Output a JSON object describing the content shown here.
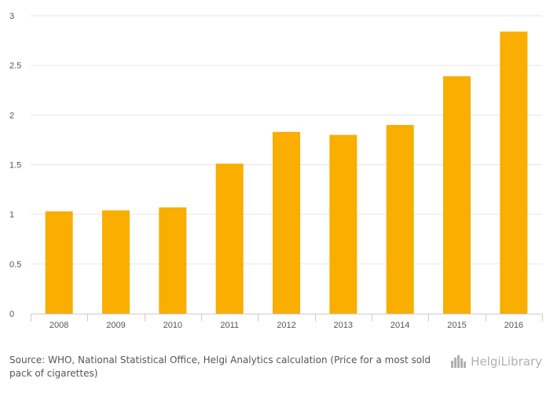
{
  "chart_data": {
    "type": "bar",
    "categories": [
      "2008",
      "2009",
      "2010",
      "2011",
      "2012",
      "2013",
      "2014",
      "2015",
      "2016"
    ],
    "values": [
      1.03,
      1.04,
      1.07,
      1.51,
      1.83,
      1.8,
      1.9,
      2.39,
      2.84
    ],
    "ylim": [
      0,
      3
    ],
    "yticks": [
      "0",
      "0.5",
      "1",
      "1.5",
      "2",
      "2.5",
      "3"
    ],
    "title": "",
    "xlabel": "",
    "ylabel": "",
    "grid": true,
    "bar_color": "#f9ae00",
    "grid_color": "#e6e6e6"
  },
  "footer": {
    "source_text": "Source: WHO, National Statistical Office, Helgi Analytics calculation (Price for a most sold pack of cigarettes)",
    "logo_text": "HelgiLibrary"
  }
}
